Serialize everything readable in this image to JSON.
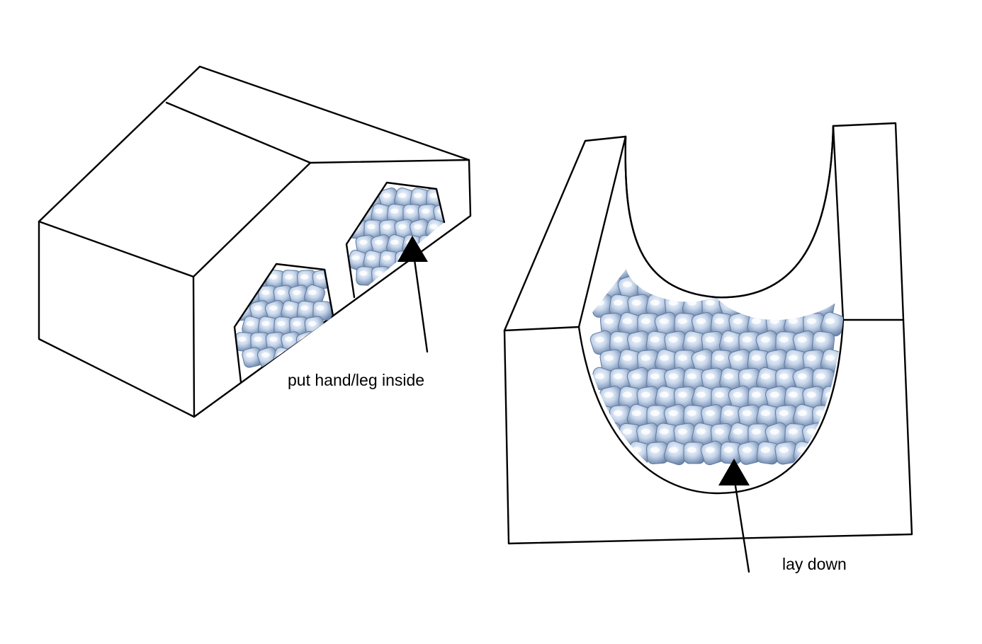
{
  "labels": {
    "left": "put hand/leg inside",
    "right": "lay down"
  },
  "colors": {
    "stroke": "#000000",
    "ice_light": "#e6eef8",
    "ice_mid": "#b9cbe3",
    "ice_dark": "#5f7aa0"
  }
}
